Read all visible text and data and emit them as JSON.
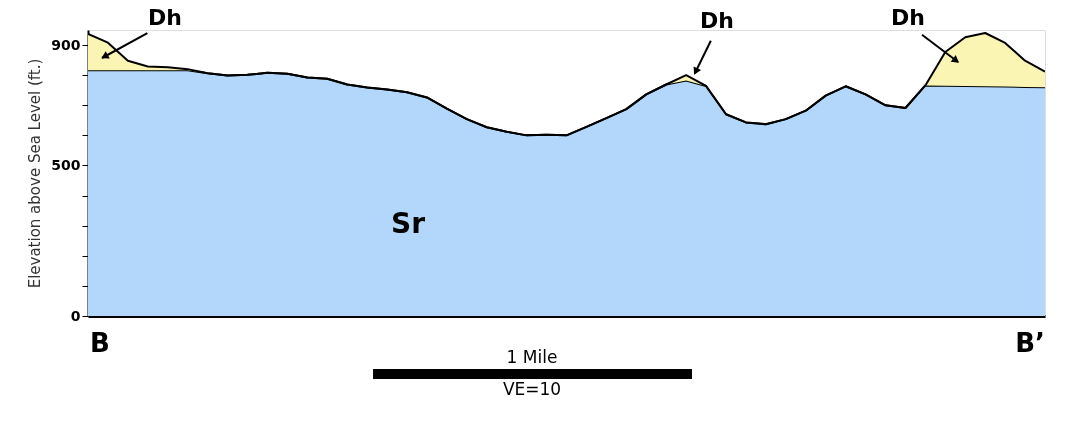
{
  "chart_data": {
    "type": "area",
    "stacked": true,
    "ylabel": "Elevation above Sea Level (ft.)",
    "categories": [
      null,
      null,
      null,
      null,
      null,
      null,
      null,
      null,
      null,
      null,
      null,
      null,
      null,
      null,
      null,
      null,
      null,
      null,
      null,
      null,
      null,
      null,
      null,
      null,
      null,
      null,
      null,
      null,
      null,
      null,
      null,
      null,
      null,
      null,
      null,
      null,
      null,
      null,
      null,
      null,
      null,
      null,
      null,
      null,
      null,
      null,
      null,
      null,
      null
    ],
    "series": [
      {
        "name": "Sr",
        "color": "#b3d7fa",
        "values": [
          816,
          816,
          816,
          816,
          816,
          816,
          806,
          799,
          801,
          808,
          805,
          792,
          788,
          769,
          759,
          752,
          743,
          726,
          689,
          654,
          627,
          612,
          600,
          602,
          600,
          628,
          657,
          687,
          736,
          769,
          782,
          764,
          670,
          643,
          637,
          654,
          682,
          732,
          763,
          736,
          700,
          691,
          766,
          765,
          764,
          763,
          762,
          761,
          760
        ]
      },
      {
        "color": "#fbf5b4",
        "values": [
          121,
          92,
          32,
          13,
          10,
          4,
          0,
          0,
          0,
          0,
          0,
          0,
          0,
          0,
          0,
          0,
          0,
          0,
          0,
          0,
          0,
          0,
          0,
          0,
          0,
          0,
          0,
          0,
          0,
          0,
          18,
          0,
          0,
          0,
          0,
          0,
          0,
          0,
          0,
          0,
          0,
          0,
          0,
          112,
          162,
          177,
          145,
          87,
          52
        ]
      }
    ],
    "ylim": [
      0,
      950
    ],
    "yticks": [
      0,
      {
        "value": 100,
        "label": null
      },
      {
        "value": 200,
        "label": null
      },
      {
        "value": 300,
        "label": null
      },
      {
        "value": 400,
        "label": null
      },
      500,
      {
        "value": 600,
        "label": null
      },
      {
        "value": 700,
        "label": null
      },
      {
        "value": 800,
        "label": null
      },
      900
    ],
    "tick_labels": "y",
    "grid": false,
    "annotations": [
      "Dh",
      "Dh",
      "Dh",
      "B",
      "B’",
      "1 Mile",
      "VE=10"
    ]
  }
}
